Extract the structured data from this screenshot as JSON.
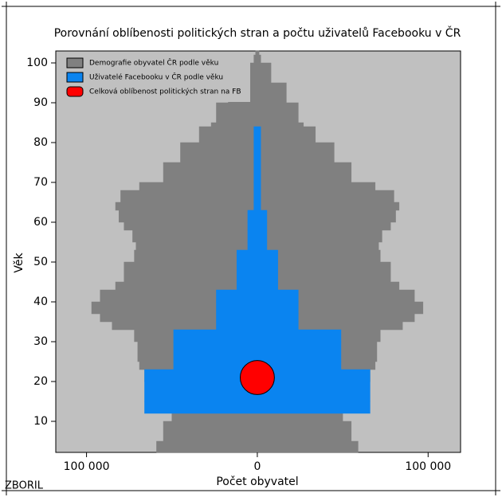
{
  "chart_data": {
    "type": "pyramid",
    "title": "Porovnání oblíbenosti politických stran a počtu uživatelů Facebooku v ČR",
    "xlabel": "Počet obyvatel",
    "ylabel": "Věk",
    "footer": "ZBORIL",
    "legend": "upper left",
    "xlim": [
      -118000,
      119000
    ],
    "ylim": [
      2.2,
      103
    ],
    "xticks": [
      {
        "value": -100000,
        "label": "100 000"
      },
      0,
      {
        "value": 100000,
        "label": "100 000"
      }
    ],
    "yticks": [
      10,
      20,
      30,
      40,
      50,
      60,
      70,
      80,
      90,
      100
    ],
    "y": [
      2,
      5,
      10,
      12,
      15,
      20,
      23,
      25,
      30,
      33,
      35,
      37,
      40,
      43,
      45,
      50,
      53,
      55,
      58,
      60,
      63,
      65,
      68,
      70,
      75,
      80,
      84,
      85,
      90,
      95,
      100,
      102
    ],
    "series": [
      {
        "name": "Demografie obyvatel ČR podle věku",
        "color": "#808080",
        "values": [
          59000,
          55000,
          50000,
          46000,
          52000,
          66000,
          69000,
          70000,
          72000,
          85000,
          92000,
          97000,
          92000,
          83000,
          78000,
          72000,
          71000,
          73000,
          78000,
          81000,
          83000,
          80000,
          69000,
          55000,
          45000,
          34000,
          27000,
          24000,
          17000,
          8000,
          2000,
          1000
        ]
      },
      {
        "name": "Uživatelé Facebooku v ČR podle věku",
        "color": "#0a84f0",
        "values": [
          null,
          null,
          null,
          66000,
          66000,
          66000,
          49000,
          49000,
          49000,
          24000,
          24000,
          24000,
          24000,
          12000,
          12000,
          12000,
          5600,
          5600,
          5600,
          5600,
          2000,
          2000,
          2000,
          2000,
          2000,
          2000,
          null,
          null,
          null,
          null,
          null,
          null
        ]
      }
    ],
    "highlight": {
      "name": "Celková oblíbenost politických stran na FB",
      "color": "#ff0000",
      "x": 0,
      "y": 21,
      "size": 10000
    }
  }
}
